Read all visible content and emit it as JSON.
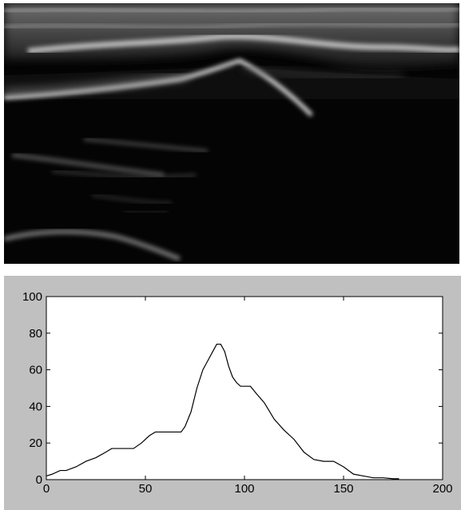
{
  "image_panel": {
    "description_icon": "ultrasound-image"
  },
  "chart_data": {
    "type": "line",
    "title": "",
    "xlabel": "",
    "ylabel": "",
    "xlim": [
      0,
      200
    ],
    "ylim": [
      0,
      100
    ],
    "xticks": [
      0,
      50,
      100,
      150,
      200
    ],
    "yticks": [
      0,
      20,
      40,
      60,
      80,
      100
    ],
    "grid": false,
    "series": [
      {
        "color": "#000000",
        "x": [
          0,
          3,
          7,
          10,
          15,
          20,
          25,
          30,
          33,
          36,
          40,
          44,
          48,
          52,
          55,
          60,
          65,
          68,
          70,
          73,
          76,
          79,
          82,
          84,
          86,
          88,
          90,
          92,
          94,
          96,
          98,
          100,
          103,
          106,
          110,
          115,
          120,
          125,
          130,
          135,
          140,
          145,
          150,
          155,
          160,
          165,
          170,
          175,
          178
        ],
        "y": [
          2,
          3,
          5,
          5,
          7,
          10,
          12,
          15,
          17,
          17,
          17,
          17,
          20,
          24,
          26,
          26,
          26,
          26,
          29,
          37,
          50,
          60,
          66,
          70,
          74,
          74,
          70,
          62,
          56,
          53,
          51,
          51,
          51,
          47,
          42,
          33,
          27,
          22,
          15,
          11,
          10,
          10,
          7,
          3,
          2,
          1,
          1,
          0.5,
          0.5
        ]
      }
    ]
  }
}
